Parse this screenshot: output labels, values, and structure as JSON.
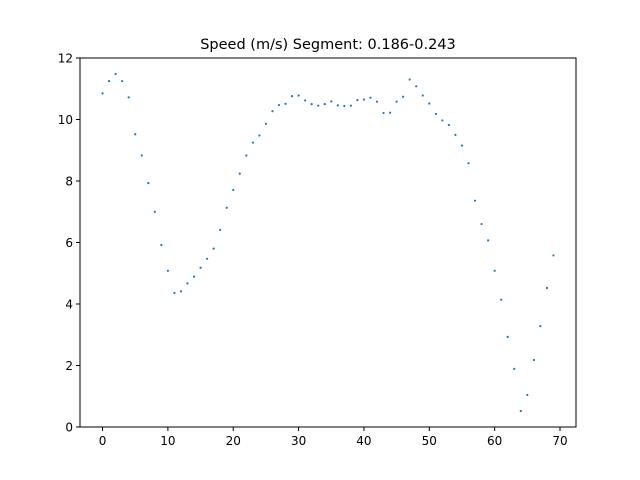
{
  "chart_data": {
    "type": "scatter",
    "title": "Speed (m/s) Segment: 0.186-0.243",
    "xlabel": "",
    "ylabel": "",
    "xlim": [
      -3.45,
      72.45
    ],
    "ylim": [
      0,
      12
    ],
    "xticks": [
      0,
      10,
      20,
      30,
      40,
      50,
      60,
      70
    ],
    "yticks": [
      0,
      2,
      4,
      6,
      8,
      10,
      12
    ],
    "grid": false,
    "legend": false,
    "marker_color": "#1f77b4",
    "series": [
      {
        "x": [
          0,
          1,
          2,
          3,
          4,
          5,
          6,
          7,
          8,
          9,
          10,
          11,
          12,
          13,
          14,
          15,
          16,
          17,
          18,
          19,
          20,
          21,
          22,
          23,
          24,
          25,
          26,
          27,
          28,
          29,
          30,
          31,
          32,
          33,
          34,
          35,
          36,
          37,
          38,
          39,
          40,
          41,
          42,
          43,
          44,
          45,
          46,
          47,
          48,
          49,
          50,
          51,
          52,
          53,
          54,
          55,
          56,
          57,
          58,
          59,
          60,
          61,
          62,
          63,
          64,
          65,
          66,
          67,
          68,
          69
        ],
        "y": [
          10.85,
          11.25,
          11.48,
          11.25,
          10.72,
          9.52,
          8.83,
          7.93,
          7.0,
          5.92,
          5.08,
          4.36,
          4.41,
          4.67,
          4.89,
          5.18,
          5.47,
          5.8,
          6.41,
          7.13,
          7.71,
          8.24,
          8.83,
          9.25,
          9.48,
          9.86,
          10.27,
          10.47,
          10.51,
          10.76,
          10.78,
          10.62,
          10.5,
          10.45,
          10.5,
          10.59,
          10.46,
          10.44,
          10.45,
          10.63,
          10.65,
          10.71,
          10.58,
          10.21,
          10.22,
          10.58,
          10.74,
          11.3,
          11.08,
          10.78,
          10.52,
          10.18,
          9.97,
          9.82,
          9.5,
          9.15,
          8.58,
          7.36,
          6.6,
          6.07,
          5.08,
          4.14,
          2.93,
          1.89,
          0.52,
          1.04,
          2.18,
          3.28,
          4.52,
          5.58
        ]
      }
    ]
  }
}
